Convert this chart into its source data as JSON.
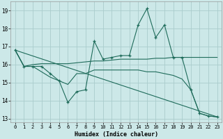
{
  "xlabel": "Humidex (Indice chaleur)",
  "bg_color": "#cce8e8",
  "grid_color": "#aacccc",
  "line_color": "#1e6b5a",
  "xlim": [
    -0.5,
    23.5
  ],
  "ylim": [
    12.8,
    19.5
  ],
  "yticks": [
    13,
    14,
    15,
    16,
    17,
    18,
    19
  ],
  "xticks": [
    0,
    1,
    2,
    3,
    4,
    5,
    6,
    7,
    8,
    9,
    10,
    11,
    12,
    13,
    14,
    15,
    16,
    17,
    18,
    19,
    20,
    21,
    22,
    23
  ],
  "line1_x": [
    0,
    1,
    2,
    3,
    4,
    5,
    6,
    7,
    8,
    9,
    10,
    11,
    12,
    13,
    14,
    15,
    16,
    17,
    18,
    19,
    20,
    21,
    22,
    23
  ],
  "line1_y": [
    16.8,
    15.9,
    15.9,
    15.9,
    15.5,
    15.1,
    13.9,
    14.5,
    14.6,
    17.3,
    16.3,
    16.4,
    16.5,
    16.5,
    18.2,
    19.1,
    17.5,
    18.2,
    16.4,
    16.4,
    14.6,
    13.3,
    13.15,
    13.1
  ],
  "line2_x": [
    0,
    1,
    2,
    3,
    4,
    5,
    6,
    7,
    8,
    9,
    10,
    11,
    12,
    13,
    14,
    15,
    16,
    17,
    18,
    19,
    20,
    21,
    22,
    23
  ],
  "line2_y": [
    16.8,
    15.9,
    16.0,
    16.05,
    16.05,
    16.05,
    16.05,
    16.1,
    16.15,
    16.2,
    16.2,
    16.25,
    16.3,
    16.3,
    16.3,
    16.3,
    16.35,
    16.35,
    16.4,
    16.4,
    16.4,
    16.4,
    16.4,
    16.4
  ],
  "line3_x": [
    0,
    23
  ],
  "line3_y": [
    16.8,
    13.1
  ],
  "line4_x": [
    0,
    1,
    2,
    3,
    4,
    5,
    6,
    7,
    8,
    9,
    10,
    11,
    12,
    13,
    14,
    15,
    16,
    17,
    18,
    19,
    20,
    21,
    22,
    23
  ],
  "line4_y": [
    16.8,
    15.9,
    15.9,
    15.6,
    15.3,
    15.1,
    14.9,
    15.5,
    15.5,
    15.7,
    15.7,
    15.7,
    15.7,
    15.7,
    15.7,
    15.6,
    15.6,
    15.5,
    15.4,
    15.2,
    14.6,
    13.3,
    13.15,
    13.1
  ]
}
